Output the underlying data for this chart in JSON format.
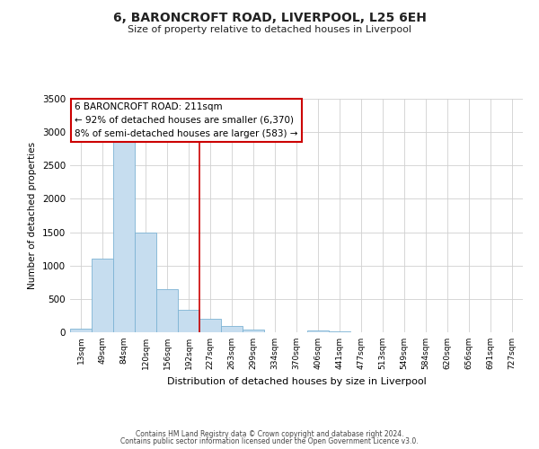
{
  "title": "6, BARONCROFT ROAD, LIVERPOOL, L25 6EH",
  "subtitle": "Size of property relative to detached houses in Liverpool",
  "xlabel": "Distribution of detached houses by size in Liverpool",
  "ylabel": "Number of detached properties",
  "bar_color": "#c6ddef",
  "bar_edge_color": "#7db3d4",
  "categories": [
    "13sqm",
    "49sqm",
    "84sqm",
    "120sqm",
    "156sqm",
    "192sqm",
    "227sqm",
    "263sqm",
    "299sqm",
    "334sqm",
    "370sqm",
    "406sqm",
    "441sqm",
    "477sqm",
    "513sqm",
    "549sqm",
    "584sqm",
    "620sqm",
    "656sqm",
    "691sqm",
    "727sqm"
  ],
  "values": [
    50,
    1100,
    2920,
    1500,
    650,
    330,
    200,
    100,
    45,
    0,
    0,
    30,
    10,
    0,
    0,
    0,
    0,
    0,
    0,
    0,
    0
  ],
  "ylim": [
    0,
    3500
  ],
  "yticks": [
    0,
    500,
    1000,
    1500,
    2000,
    2500,
    3000,
    3500
  ],
  "vline_x": 5.5,
  "vline_color": "#cc0000",
  "annotation_title": "6 BARONCROFT ROAD: 211sqm",
  "annotation_line1": "← 92% of detached houses are smaller (6,370)",
  "annotation_line2": "8% of semi-detached houses are larger (583) →",
  "annotation_box_color": "#ffffff",
  "annotation_box_edge": "#cc0000",
  "footer1": "Contains HM Land Registry data © Crown copyright and database right 2024.",
  "footer2": "Contains public sector information licensed under the Open Government Licence v3.0.",
  "background_color": "#ffffff",
  "grid_color": "#d0d0d0"
}
